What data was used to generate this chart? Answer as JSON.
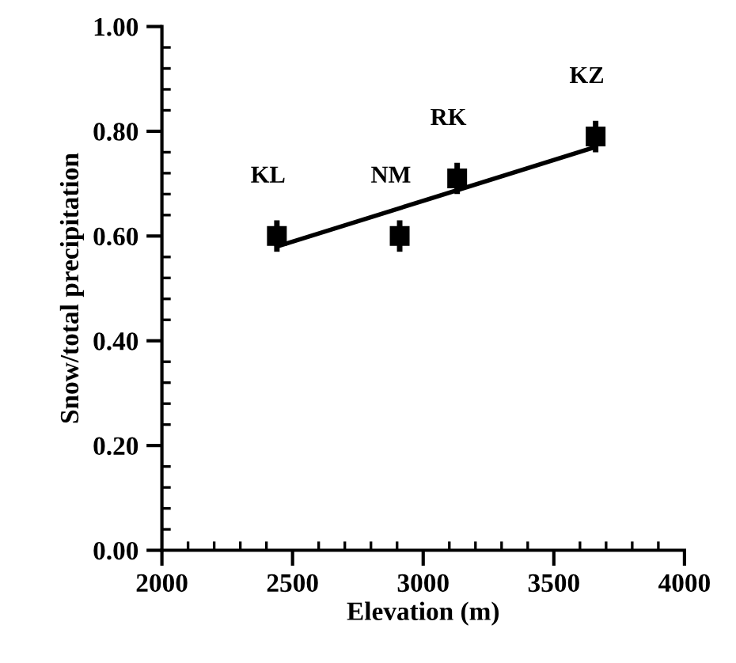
{
  "chart_data": {
    "type": "scatter",
    "xlabel": "Elevation (m)",
    "ylabel": "Snow/total precipitation",
    "xlim": [
      2000,
      4000
    ],
    "xticks": [
      2000,
      2500,
      3000,
      3500,
      4000
    ],
    "ylim": [
      0,
      1
    ],
    "yticks": [
      {
        "value": 0,
        "label": "0.00"
      },
      {
        "value": 0.2,
        "label": "0.20"
      },
      {
        "value": 0.4,
        "label": "0.40"
      },
      {
        "value": 0.6,
        "label": "0.60"
      },
      {
        "value": 0.8,
        "label": "0.80"
      },
      {
        "value": 1,
        "label": "1.00"
      }
    ],
    "grid": false,
    "legend": false,
    "marker": "square",
    "series": [
      {
        "color": "#000000",
        "x": [
          2440,
          2910,
          3130,
          3660
        ],
        "values": [
          0.6,
          0.6,
          0.71,
          0.79
        ],
        "errors": [
          0.03,
          0.03,
          0.03,
          0.03
        ]
      },
      {
        "type": "line",
        "color": "#000000",
        "x": [
          2440,
          3660
        ],
        "values": [
          0.58,
          0.77
        ],
        "line_style": "solid",
        "marker": "none"
      }
    ],
    "annotations": [
      {
        "text": "KL",
        "x": 2440,
        "y": 0.6
      },
      {
        "text": "NM",
        "x": 2910,
        "y": 0.6
      },
      {
        "text": "RK",
        "x": 3130,
        "y": 0.71
      },
      {
        "text": "KZ",
        "x": 3660,
        "y": 0.79
      }
    ]
  }
}
